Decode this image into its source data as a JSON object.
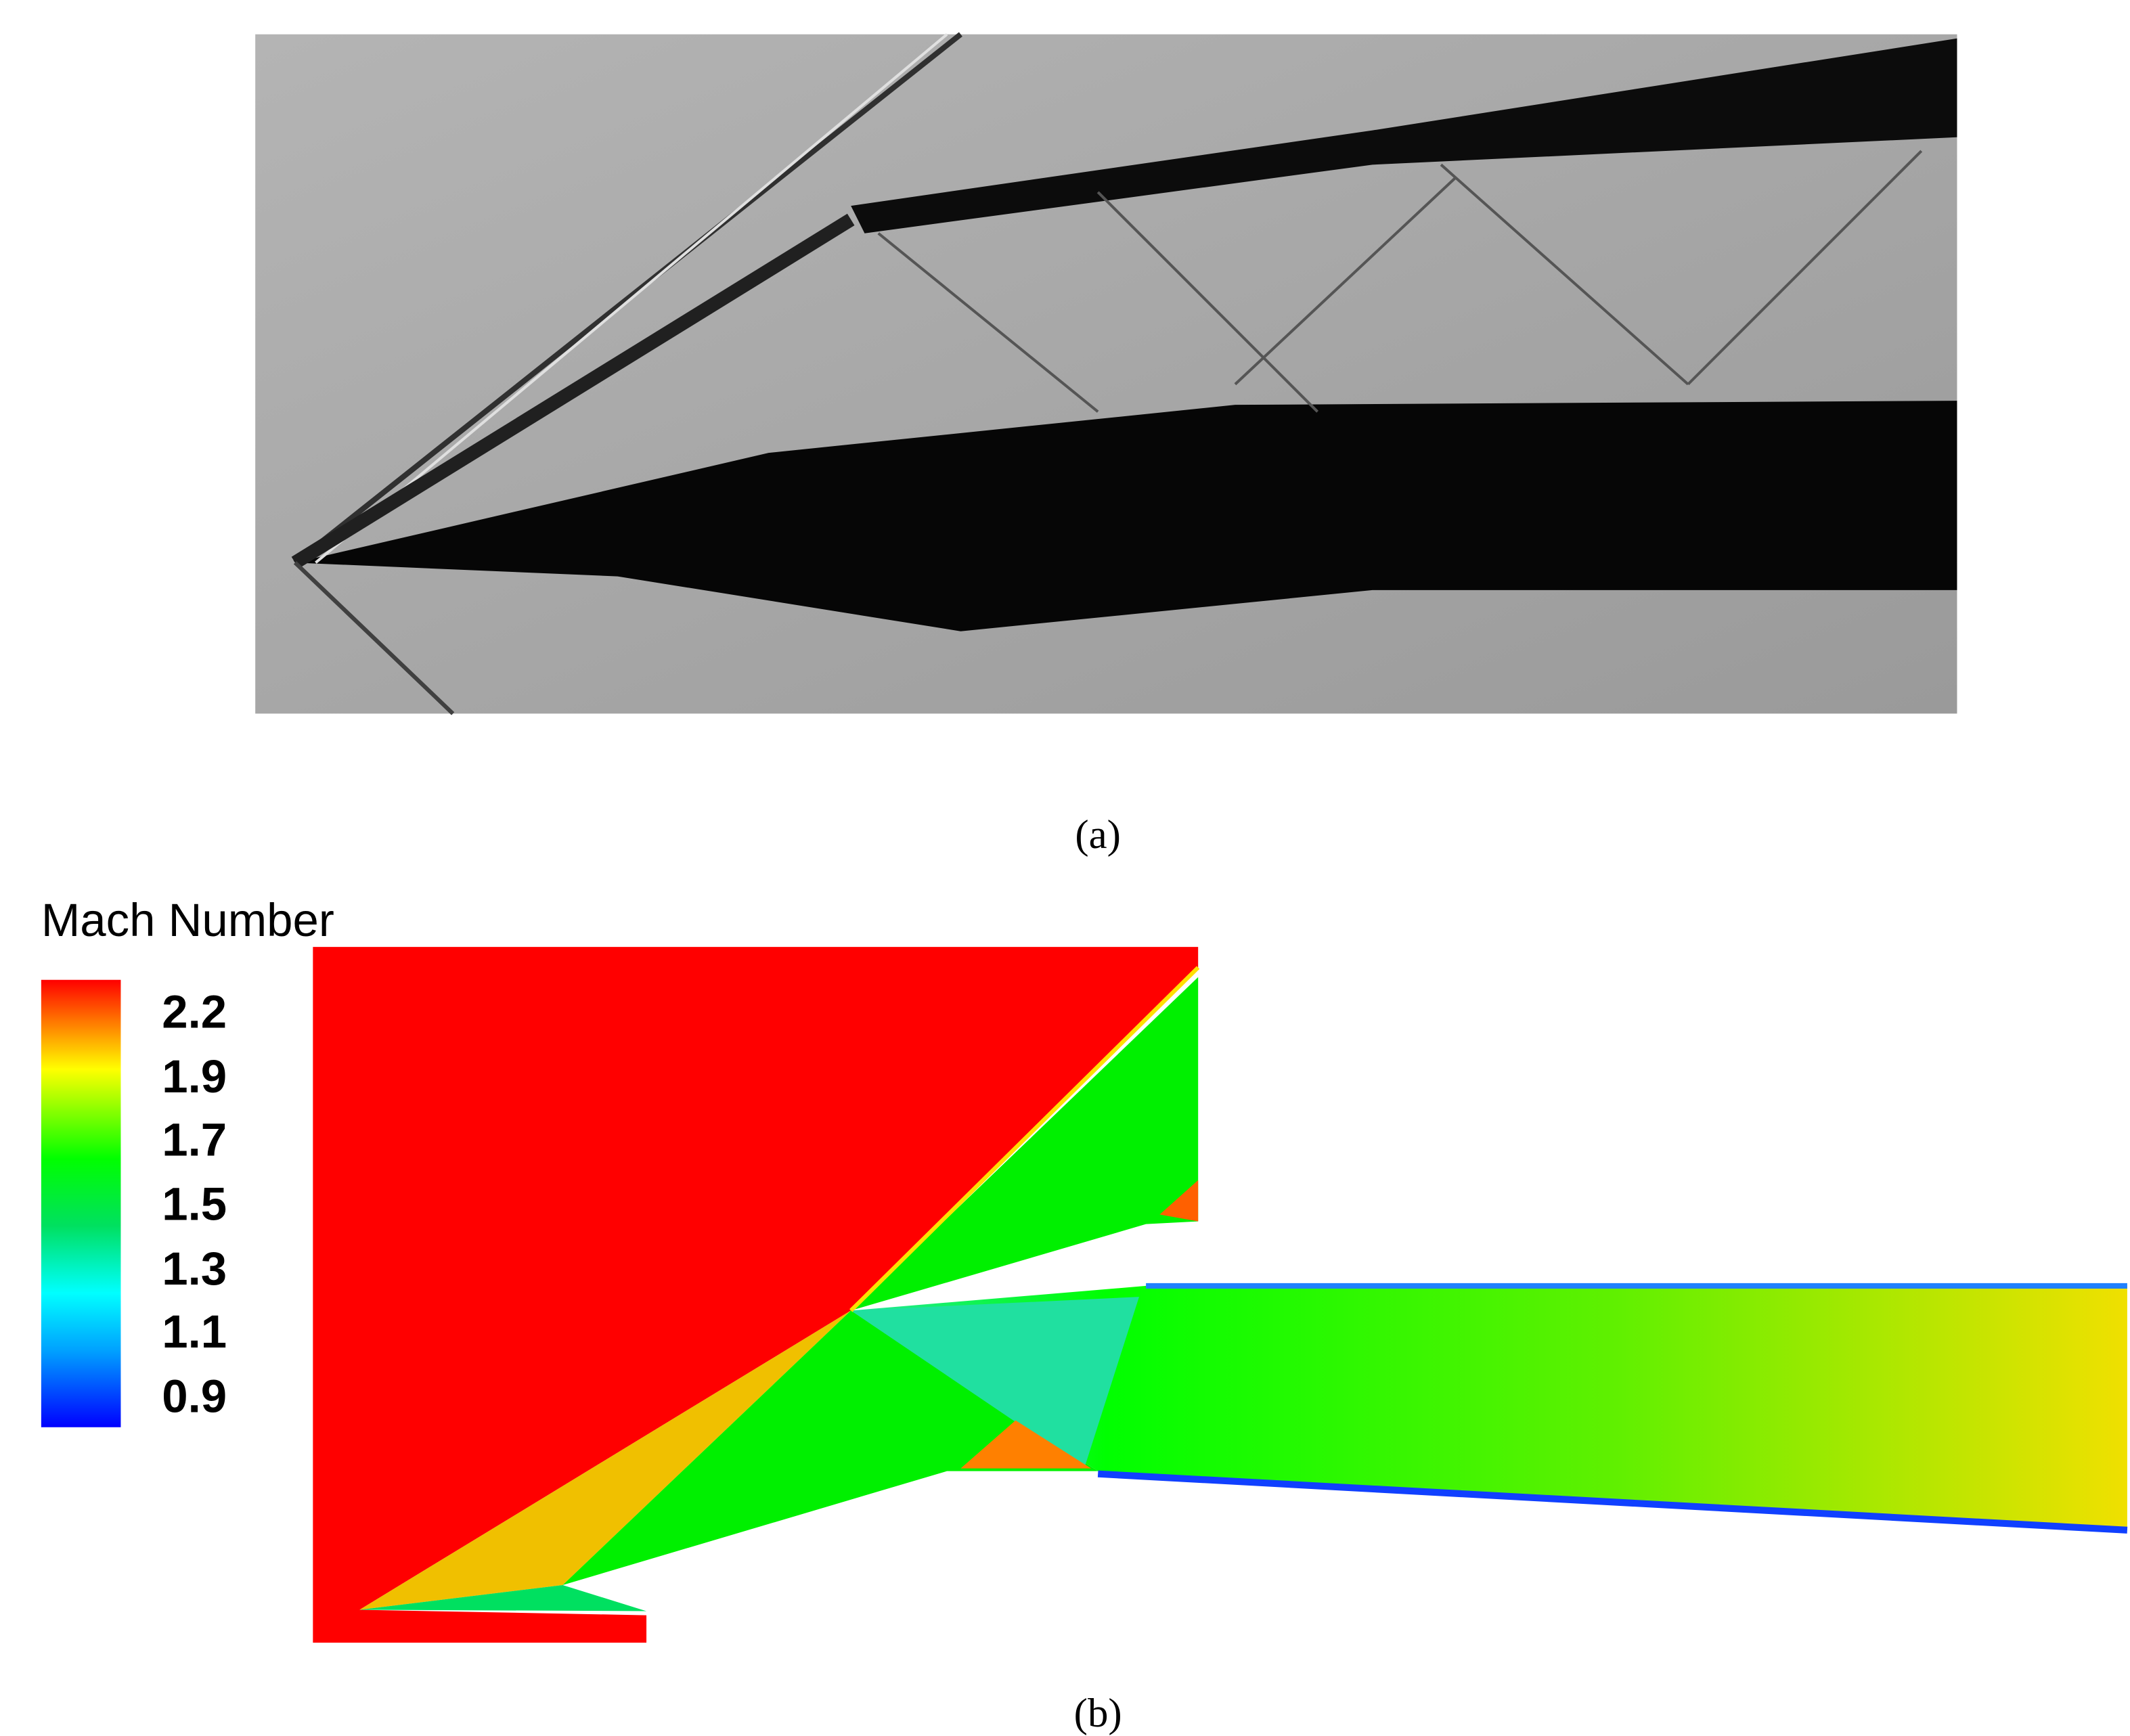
{
  "figure": {
    "panel_a": {
      "caption": "(a)"
    },
    "panel_b": {
      "caption": "(b)",
      "colorbar": {
        "title": "Mach Number",
        "labels": [
          "2.2",
          "1.9",
          "1.7",
          "1.5",
          "1.3",
          "1.1",
          "0.9"
        ]
      }
    }
  }
}
